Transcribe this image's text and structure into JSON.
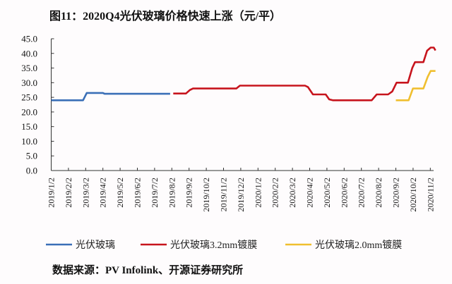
{
  "chart_data": {
    "type": "line",
    "title": "图11：2020Q4光伏玻璃价格快速上涨（元/平）",
    "source": "数据来源：PV Infolink、开源证券研究所",
    "xlabel": "",
    "ylabel": "",
    "ylim": [
      0,
      45
    ],
    "yticks": [
      "0.0",
      "5.0",
      "10.0",
      "15.0",
      "20.0",
      "25.0",
      "30.0",
      "35.0",
      "40.0",
      "45.0"
    ],
    "x_unit": "months since 2019/1/2",
    "categories": [
      "2019/1/2",
      "2019/2/2",
      "2019/3/2",
      "2019/4/2",
      "2019/5/2",
      "2019/6/2",
      "2019/7/2",
      "2019/8/2",
      "2019/9/2",
      "2019/10/2",
      "2019/11/2",
      "2019/12/2",
      "2020/1/2",
      "2020/2/2",
      "2020/3/2",
      "2020/4/2",
      "2020/5/2",
      "2020/6/2",
      "2020/7/2",
      "2020/8/2",
      "2020/9/2",
      "2020/10/2",
      "2020/11/2"
    ],
    "grid": false,
    "legend_position": "bottom",
    "series": [
      {
        "name": "光伏玻璃",
        "color": "#3a6fb7",
        "points": [
          [
            0,
            24
          ],
          [
            1.85,
            24
          ],
          [
            2.06,
            26.5
          ],
          [
            3.0,
            26.5
          ],
          [
            3.1,
            26.2
          ],
          [
            6.9,
            26.2
          ]
        ]
      },
      {
        "name": "光伏玻璃3.2mm镀膜",
        "color": "#c7141d",
        "points": [
          [
            7.08,
            26.3
          ],
          [
            7.82,
            26.3
          ],
          [
            8.05,
            27.5
          ],
          [
            8.23,
            28
          ],
          [
            10.74,
            28
          ],
          [
            10.95,
            29
          ],
          [
            14.73,
            29
          ],
          [
            14.9,
            28.5
          ],
          [
            15.19,
            26
          ],
          [
            15.93,
            26
          ],
          [
            16.13,
            24.3
          ],
          [
            16.34,
            24
          ],
          [
            18.6,
            24
          ],
          [
            18.89,
            26
          ],
          [
            19.55,
            26
          ],
          [
            19.79,
            27
          ],
          [
            20.04,
            30
          ],
          [
            20.7,
            30
          ],
          [
            20.95,
            35
          ],
          [
            21.11,
            37
          ],
          [
            21.6,
            37
          ],
          [
            21.81,
            40.9
          ],
          [
            22.02,
            42
          ],
          [
            22.2,
            42
          ],
          [
            22.3,
            41
          ]
        ]
      },
      {
        "name": "光伏玻璃2.0mm镀膜",
        "color": "#f0bf2f",
        "points": [
          [
            20.0,
            24
          ],
          [
            20.74,
            24
          ],
          [
            20.99,
            28
          ],
          [
            21.6,
            28
          ],
          [
            21.85,
            32
          ],
          [
            22.02,
            34
          ],
          [
            22.3,
            34
          ]
        ]
      }
    ]
  }
}
